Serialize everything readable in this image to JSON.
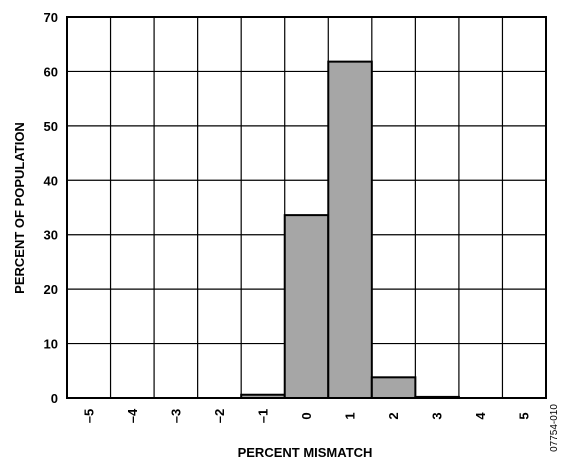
{
  "chart_data": {
    "type": "bar",
    "title": "",
    "xlabel": "PERCENT MISMATCH",
    "ylabel": "PERCENT OF POPULATION",
    "categories": [
      "–5",
      "–4",
      "–3",
      "–2",
      "–1",
      "0",
      "1",
      "2",
      "3",
      "4",
      "5"
    ],
    "values": [
      0,
      0,
      0,
      0,
      0.6,
      33.6,
      61.8,
      3.8,
      0.2,
      0,
      0
    ],
    "ylim": [
      0,
      70
    ],
    "yticks": [
      0,
      10,
      20,
      30,
      40,
      50,
      60,
      70
    ],
    "grid": true,
    "bar_color": "#a6a6a6",
    "figure_id": "07754-010"
  }
}
